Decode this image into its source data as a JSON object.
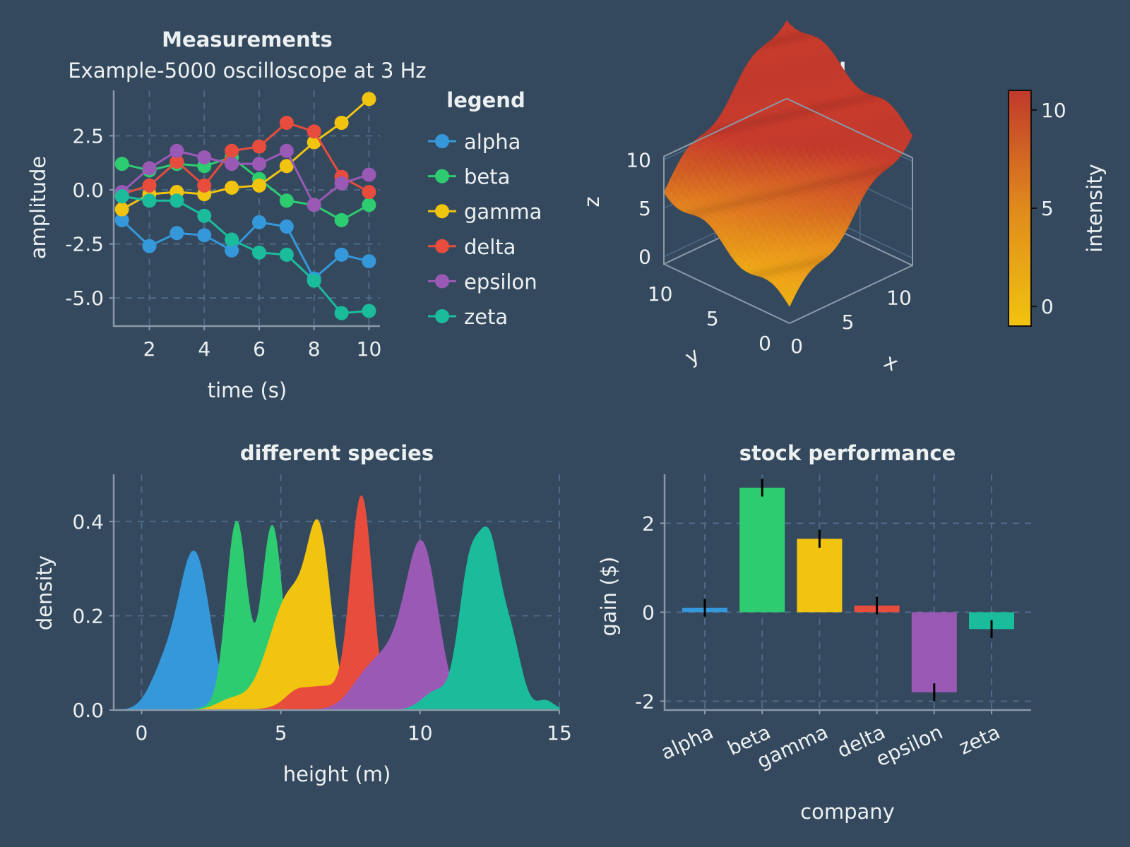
{
  "chart_data": [
    {
      "type": "line",
      "title": "Measurements",
      "subtitle": "Example-5000 oscilloscope at 3 Hz",
      "xlabel": "time (s)",
      "ylabel": "amplitude",
      "xlim": [
        0.7,
        10.4
      ],
      "ylim": [
        -6.3,
        4.6
      ],
      "xticks": [
        2,
        4,
        6,
        8,
        10
      ],
      "yticks": [
        -5.0,
        -2.5,
        0.0,
        2.5
      ],
      "ytick_labels": [
        "-5.0",
        "-2.5",
        "0.0",
        "2.5"
      ],
      "grid": true,
      "legend": {
        "title": "legend",
        "placement": "right"
      },
      "x": [
        1,
        2,
        3,
        4,
        5,
        6,
        7,
        8,
        9,
        10
      ],
      "series": [
        {
          "name": "alpha",
          "color": "#3498db",
          "values": [
            -1.4,
            -2.6,
            -2.0,
            -2.1,
            -2.8,
            -1.5,
            -1.7,
            -4.1,
            -3.0,
            -3.3
          ]
        },
        {
          "name": "beta",
          "color": "#2ecc71",
          "values": [
            1.2,
            0.9,
            1.2,
            1.1,
            1.5,
            0.5,
            -0.5,
            -0.7,
            -1.4,
            -0.7
          ]
        },
        {
          "name": "gamma",
          "color": "#f1c40f",
          "values": [
            -0.9,
            -0.2,
            -0.1,
            -0.2,
            0.1,
            0.2,
            1.1,
            2.2,
            3.1,
            4.2
          ]
        },
        {
          "name": "delta",
          "color": "#e74c3c",
          "values": [
            -0.2,
            0.2,
            1.3,
            0.2,
            1.8,
            2.0,
            3.1,
            2.7,
            0.6,
            -0.1
          ]
        },
        {
          "name": "epsilon",
          "color": "#9b59b6",
          "values": [
            -0.1,
            1.0,
            1.8,
            1.5,
            1.2,
            1.2,
            1.8,
            -0.7,
            0.3,
            0.7
          ]
        },
        {
          "name": "zeta",
          "color": "#1abc9c",
          "values": [
            -0.3,
            -0.5,
            -0.5,
            -1.2,
            -2.3,
            -2.9,
            -3.0,
            -4.2,
            -5.7,
            -5.6
          ]
        }
      ]
    },
    {
      "type": "surface",
      "title": "sinusoid",
      "xlabel": "x",
      "ylabel": "y",
      "zlabel": "z",
      "xlim": [
        0,
        12
      ],
      "ylim": [
        0,
        12
      ],
      "zlim": [
        -1,
        11
      ],
      "xticks": [
        0,
        5,
        10
      ],
      "yticks": [
        0,
        5,
        10
      ],
      "zticks": [
        0,
        5,
        10
      ],
      "colorbar": {
        "label": "intensity",
        "ticks": [
          0,
          5,
          10
        ],
        "range": [
          -1,
          11
        ]
      },
      "surface_function": "x + y * 0.5 + sin(x + y) * 0.7 + 1"
    },
    {
      "type": "area",
      "title": "different species",
      "xlabel": "height (m)",
      "ylabel": "density",
      "xlim": [
        -1,
        15
      ],
      "ylim": [
        0,
        0.5
      ],
      "xticks": [
        0,
        5,
        10,
        15
      ],
      "yticks": [
        0.0,
        0.2,
        0.4
      ],
      "ytick_labels": [
        "0.0",
        "0.2",
        "0.4"
      ],
      "grid": true,
      "series": [
        {
          "name": "alpha",
          "color": "#3498db",
          "components": [
            [
              1.9,
              0.55,
              0.33
            ],
            [
              0.8,
              0.5,
              0.08
            ]
          ]
        },
        {
          "name": "beta",
          "color": "#2ecc71",
          "components": [
            [
              3.4,
              0.35,
              0.36
            ],
            [
              4.7,
              0.35,
              0.34
            ],
            [
              4.2,
              0.9,
              0.06
            ]
          ]
        },
        {
          "name": "gamma",
          "color": "#f1c40f",
          "components": [
            [
              6.4,
              0.4,
              0.28
            ],
            [
              5.4,
              0.8,
              0.25
            ],
            [
              3.2,
              0.5,
              0.02
            ]
          ]
        },
        {
          "name": "delta",
          "color": "#e74c3c",
          "components": [
            [
              7.9,
              0.38,
              0.44
            ],
            [
              6.5,
              0.9,
              0.05
            ],
            [
              5.5,
              0.35,
              0.015
            ]
          ]
        },
        {
          "name": "epsilon",
          "color": "#9b59b6",
          "components": [
            [
              10.1,
              0.55,
              0.3
            ],
            [
              9.0,
              0.9,
              0.12
            ],
            [
              7.9,
              0.5,
              0.02
            ]
          ]
        },
        {
          "name": "zeta",
          "color": "#1abc9c",
          "components": [
            [
              11.8,
              0.4,
              0.3
            ],
            [
              12.5,
              0.35,
              0.28
            ],
            [
              13.2,
              0.4,
              0.16
            ],
            [
              10.6,
              0.5,
              0.04
            ],
            [
              14.5,
              0.3,
              0.02
            ]
          ]
        }
      ]
    },
    {
      "type": "bar",
      "title": "stock performance",
      "xlabel": "company",
      "ylabel": "gain ($)",
      "ylim": [
        -2.2,
        3.1
      ],
      "yticks": [
        -2,
        0,
        2
      ],
      "grid": true,
      "categories": [
        "alpha",
        "beta",
        "gamma",
        "delta",
        "epsilon",
        "zeta"
      ],
      "colors": [
        "#3498db",
        "#2ecc71",
        "#f1c40f",
        "#e74c3c",
        "#9b59b6",
        "#1abc9c"
      ],
      "values": [
        0.1,
        2.8,
        1.65,
        0.15,
        -1.8,
        -0.38
      ],
      "errors": [
        0.2,
        0.2,
        0.2,
        0.2,
        0.2,
        0.2
      ]
    }
  ]
}
